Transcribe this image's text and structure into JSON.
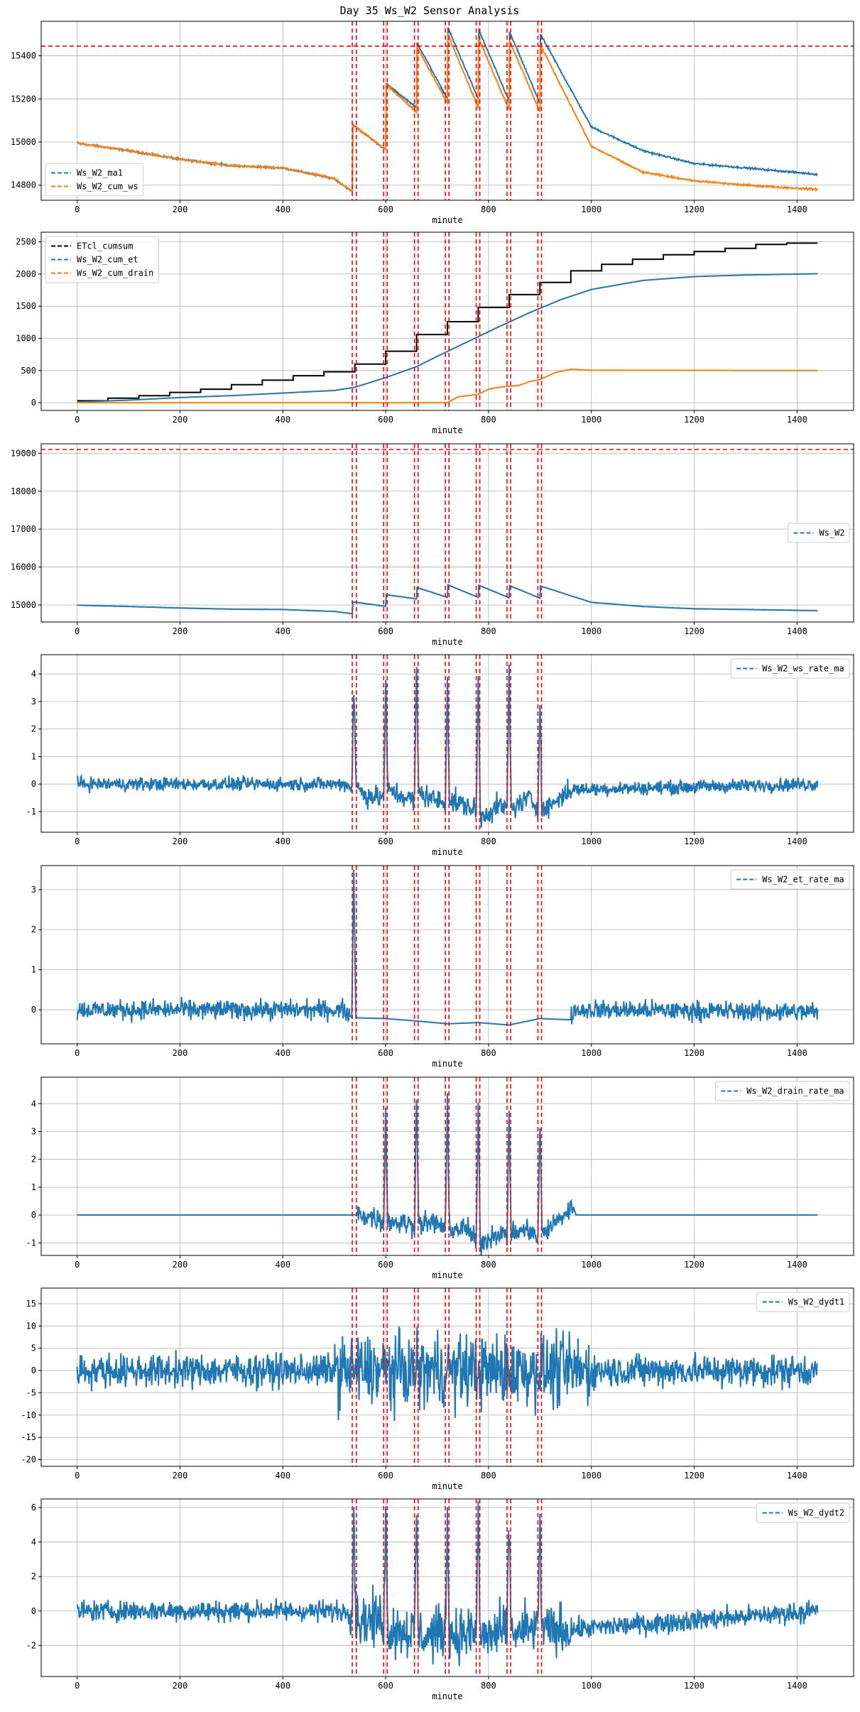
{
  "figure": {
    "title": "Day 35 Ws_W2 Sensor Analysis"
  },
  "colors": {
    "blue": "#1f77b4",
    "orange": "#ff7f0e",
    "black": "#000000",
    "event": "#ff0000",
    "grid": "#b0b0b0"
  },
  "chart_data": [
    {
      "type": "line",
      "xlabel": "minute",
      "xlim": [
        -70,
        1510
      ],
      "ylim": [
        14730,
        15560
      ],
      "xticks": [
        0,
        200,
        400,
        600,
        800,
        1000,
        1200,
        1400
      ],
      "yticks": [
        14800,
        15000,
        15200,
        15400
      ],
      "grid": true,
      "legend_position": "lower-left",
      "hline": 15445,
      "event_lines": [
        535,
        543,
        596,
        603,
        656,
        663,
        716,
        723,
        776,
        783,
        836,
        843,
        896,
        903
      ],
      "series": [
        {
          "name": "Ws_W2_ma1",
          "color": "#1f77b4",
          "style": "dashed",
          "x": [
            0,
            100,
            200,
            300,
            400,
            500,
            535,
            536,
            600,
            601,
            660,
            661,
            720,
            721,
            780,
            781,
            840,
            841,
            900,
            901,
            1000,
            1100,
            1200,
            1300,
            1440
          ],
          "y": [
            14995,
            14960,
            14920,
            14890,
            14880,
            14830,
            14770,
            15080,
            14965,
            15270,
            15160,
            15460,
            15200,
            15530,
            15200,
            15520,
            15190,
            15510,
            15180,
            15500,
            15070,
            14960,
            14900,
            14880,
            14850
          ]
        },
        {
          "name": "Ws_W2_cum_ws",
          "color": "#ff7f0e",
          "style": "dashed",
          "x": [
            0,
            100,
            200,
            300,
            400,
            500,
            535,
            536,
            600,
            601,
            660,
            661,
            720,
            721,
            780,
            781,
            840,
            841,
            900,
            901,
            1000,
            1100,
            1200,
            1300,
            1440
          ],
          "y": [
            14995,
            14960,
            14920,
            14890,
            14880,
            14830,
            14770,
            15080,
            14965,
            15265,
            15140,
            15440,
            15180,
            15500,
            15160,
            15480,
            15150,
            15470,
            15140,
            15450,
            14980,
            14860,
            14820,
            14800,
            14780
          ]
        }
      ]
    },
    {
      "type": "line",
      "xlabel": "minute",
      "xlim": [
        -70,
        1510
      ],
      "ylim": [
        -120,
        2650
      ],
      "xticks": [
        0,
        200,
        400,
        600,
        800,
        1000,
        1200,
        1400
      ],
      "yticks": [
        0,
        500,
        1000,
        1500,
        2000,
        2500
      ],
      "grid": true,
      "legend_position": "upper-left",
      "event_lines": [
        535,
        543,
        596,
        603,
        656,
        663,
        716,
        723,
        776,
        783,
        836,
        843,
        896,
        903
      ],
      "series": [
        {
          "name": "ETcl_cumsum",
          "color": "#000000",
          "style": "dashed",
          "x": [
            0,
            60,
            60,
            120,
            120,
            180,
            180,
            240,
            240,
            300,
            300,
            360,
            360,
            420,
            420,
            480,
            480,
            540,
            540,
            600,
            600,
            660,
            660,
            720,
            720,
            780,
            780,
            840,
            840,
            900,
            900,
            960,
            960,
            1020,
            1020,
            1080,
            1080,
            1140,
            1140,
            1200,
            1200,
            1260,
            1260,
            1320,
            1320,
            1380,
            1380,
            1440
          ],
          "y": [
            30,
            30,
            70,
            70,
            110,
            110,
            160,
            160,
            210,
            210,
            280,
            280,
            350,
            350,
            420,
            420,
            480,
            480,
            600,
            600,
            800,
            800,
            1060,
            1060,
            1260,
            1260,
            1480,
            1480,
            1680,
            1680,
            1870,
            1870,
            2050,
            2050,
            2150,
            2150,
            2230,
            2230,
            2300,
            2300,
            2350,
            2350,
            2400,
            2400,
            2460,
            2460,
            2480,
            2480
          ]
        },
        {
          "name": "Ws_W2_cum_et",
          "color": "#1f77b4",
          "style": "dashed",
          "x": [
            0,
            100,
            200,
            300,
            400,
            500,
            540,
            600,
            660,
            700,
            760,
            820,
            880,
            940,
            1000,
            1100,
            1200,
            1300,
            1440
          ],
          "y": [
            10,
            40,
            80,
            110,
            150,
            190,
            240,
            390,
            560,
            720,
            950,
            1180,
            1400,
            1600,
            1760,
            1900,
            1960,
            1985,
            2005
          ]
        },
        {
          "name": "Ws_W2_cum_drain",
          "color": "#ff7f0e",
          "style": "dashed",
          "x": [
            0,
            500,
            700,
            720,
            740,
            780,
            800,
            820,
            860,
            880,
            900,
            930,
            960,
            1000,
            1440
          ],
          "y": [
            0,
            0,
            0,
            0,
            90,
            130,
            210,
            240,
            270,
            330,
            360,
            470,
            520,
            505,
            500
          ]
        }
      ]
    },
    {
      "type": "line",
      "xlabel": "minute",
      "xlim": [
        -70,
        1510
      ],
      "ylim": [
        14550,
        19250
      ],
      "xticks": [
        0,
        200,
        400,
        600,
        800,
        1000,
        1200,
        1400
      ],
      "yticks": [
        15000,
        16000,
        17000,
        18000,
        19000
      ],
      "grid": true,
      "legend_position": "center-right",
      "hline": 19100,
      "event_lines": [
        535,
        543,
        596,
        603,
        656,
        663,
        716,
        723,
        776,
        783,
        836,
        843,
        896,
        903
      ],
      "series": [
        {
          "name": "Ws_W2",
          "color": "#1f77b4",
          "style": "dashed",
          "x": [
            0,
            100,
            200,
            300,
            400,
            500,
            535,
            536,
            600,
            601,
            660,
            661,
            720,
            721,
            780,
            781,
            840,
            841,
            900,
            901,
            1000,
            1100,
            1200,
            1300,
            1440
          ],
          "y": [
            14995,
            14960,
            14920,
            14890,
            14880,
            14830,
            14770,
            15080,
            14965,
            15270,
            15160,
            15460,
            15200,
            15530,
            15200,
            15520,
            15190,
            15510,
            15180,
            15500,
            15070,
            14960,
            14900,
            14880,
            14850
          ]
        }
      ]
    },
    {
      "type": "line",
      "xlabel": "minute",
      "xlim": [
        -70,
        1510
      ],
      "ylim": [
        -1.75,
        4.7
      ],
      "xticks": [
        0,
        200,
        400,
        600,
        800,
        1000,
        1200,
        1400
      ],
      "yticks": [
        -1,
        0,
        1,
        2,
        3,
        4
      ],
      "grid": true,
      "legend_position": "upper-right",
      "event_lines": [
        535,
        543,
        596,
        603,
        656,
        663,
        716,
        723,
        776,
        783,
        836,
        843,
        896,
        903
      ],
      "series": [
        {
          "name": "Ws_W2_ws_rate_ma",
          "color": "#1f77b4",
          "style": "dashed",
          "x": [
            0,
            520,
            534,
            538,
            543,
            560,
            596,
            600,
            604,
            640,
            656,
            660,
            664,
            700,
            716,
            720,
            724,
            760,
            776,
            780,
            784,
            820,
            836,
            840,
            844,
            880,
            896,
            900,
            904,
            960,
            1440
          ],
          "y": [
            0,
            0,
            -0.1,
            3.5,
            -0.1,
            -0.4,
            -0.5,
            3.8,
            -0.2,
            -0.5,
            -0.6,
            4.4,
            -0.3,
            -0.6,
            -0.7,
            4.0,
            -0.6,
            -0.8,
            -1.0,
            4.0,
            -1.2,
            -0.8,
            -0.9,
            4.3,
            -0.9,
            -0.5,
            -0.9,
            3.3,
            -1.0,
            -0.2,
            0
          ]
        }
      ]
    },
    {
      "type": "line",
      "xlabel": "minute",
      "xlim": [
        -70,
        1510
      ],
      "ylim": [
        -0.85,
        3.6
      ],
      "xticks": [
        0,
        200,
        400,
        600,
        800,
        1000,
        1200,
        1400
      ],
      "yticks": [
        0,
        1,
        2,
        3
      ],
      "grid": true,
      "legend_position": "upper-right",
      "event_lines": [
        535,
        543,
        596,
        603,
        656,
        663,
        716,
        723,
        776,
        783,
        836,
        843,
        896,
        903
      ],
      "series": [
        {
          "name": "Ws_W2_et_rate_ma",
          "color": "#1f77b4",
          "style": "dashed",
          "x": [
            0,
            520,
            534,
            538,
            542,
            600,
            660,
            720,
            780,
            840,
            900,
            960,
            965,
            1440
          ],
          "y": [
            0,
            0,
            -0.2,
            3.5,
            -0.2,
            -0.22,
            -0.28,
            -0.35,
            -0.32,
            -0.38,
            -0.22,
            -0.25,
            0,
            -0.05
          ]
        }
      ]
    },
    {
      "type": "line",
      "xlabel": "minute",
      "xlim": [
        -70,
        1510
      ],
      "ylim": [
        -1.45,
        4.95
      ],
      "xticks": [
        0,
        200,
        400,
        600,
        800,
        1000,
        1200,
        1400
      ],
      "yticks": [
        -1,
        0,
        1,
        2,
        3,
        4
      ],
      "grid": true,
      "legend_position": "upper-right",
      "event_lines": [
        535,
        543,
        596,
        603,
        656,
        663,
        716,
        723,
        776,
        783,
        836,
        843,
        896,
        903
      ],
      "series": [
        {
          "name": "Ws_W2_drain_rate_ma",
          "color": "#1f77b4",
          "style": "dashed",
          "x": [
            0,
            540,
            560,
            596,
            600,
            604,
            640,
            656,
            660,
            664,
            700,
            716,
            720,
            724,
            760,
            776,
            780,
            784,
            820,
            836,
            840,
            844,
            880,
            896,
            900,
            904,
            940,
            965,
            970,
            1440
          ],
          "y": [
            0,
            0,
            0,
            -0.2,
            3.8,
            -0.2,
            -0.3,
            -0.4,
            4.6,
            -0.3,
            -0.3,
            -0.5,
            4.0,
            -0.5,
            -0.5,
            -1.0,
            3.8,
            -1.0,
            -0.6,
            -0.8,
            3.8,
            -0.7,
            -0.5,
            -0.9,
            3.5,
            -0.7,
            -0.1,
            0.3,
            0,
            0
          ]
        }
      ]
    },
    {
      "type": "line",
      "xlabel": "minute",
      "xlim": [
        -70,
        1510
      ],
      "ylim": [
        -21.5,
        18.5
      ],
      "xticks": [
        0,
        200,
        400,
        600,
        800,
        1000,
        1200,
        1400
      ],
      "yticks": [
        -20,
        -15,
        -10,
        -5,
        0,
        5,
        10,
        15
      ],
      "grid": true,
      "legend_position": "upper-right",
      "event_lines": [
        535,
        543,
        596,
        603,
        656,
        663,
        716,
        723,
        776,
        783,
        836,
        843,
        896,
        903
      ],
      "series": [
        {
          "name": "Ws_W2_dydt1",
          "color": "#1f77b4",
          "style": "dashed",
          "x": [
            0,
            1440
          ],
          "y": [
            0,
            0
          ]
        }
      ]
    },
    {
      "type": "line",
      "xlabel": "minute",
      "xlim": [
        -70,
        1510
      ],
      "ylim": [
        -3.8,
        6.5
      ],
      "xticks": [
        0,
        200,
        400,
        600,
        800,
        1000,
        1200,
        1400
      ],
      "yticks": [
        -2,
        0,
        2,
        4,
        6
      ],
      "grid": true,
      "legend_position": "upper-right",
      "event_lines": [
        535,
        543,
        596,
        603,
        656,
        663,
        716,
        723,
        776,
        783,
        836,
        843,
        896,
        903
      ],
      "series": [
        {
          "name": "Ws_W2_dydt2",
          "color": "#1f77b4",
          "style": "dashed",
          "x": [
            0,
            534,
            538,
            542,
            596,
            600,
            604,
            656,
            660,
            664,
            716,
            720,
            724,
            776,
            780,
            784,
            836,
            840,
            844,
            896,
            900,
            904,
            1440
          ],
          "y": [
            0,
            0,
            5.6,
            -0.5,
            -0.5,
            5.7,
            -1,
            -1.2,
            5.6,
            -1.5,
            -1.2,
            5.6,
            -1.4,
            -1.3,
            5.7,
            -1.5,
            -1.2,
            5.8,
            -1.3,
            -1.0,
            5.5,
            -1.2,
            0
          ]
        }
      ]
    }
  ]
}
